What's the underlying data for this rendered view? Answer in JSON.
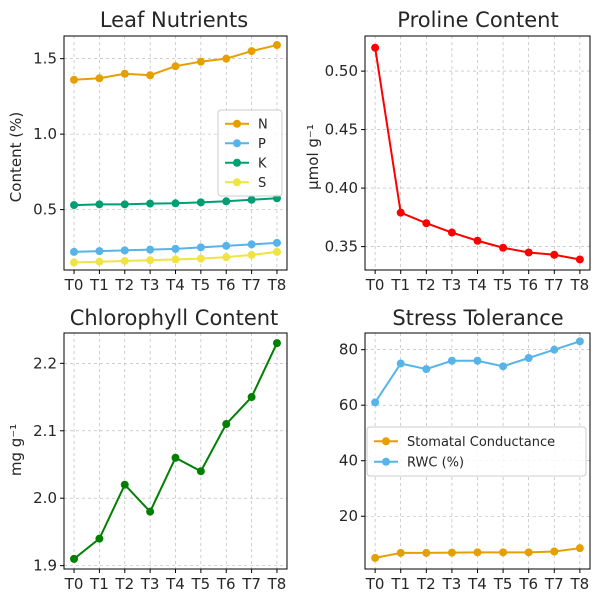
{
  "chart_data": [
    {
      "type": "line",
      "title": "Leaf Nutrients",
      "xlabel": "",
      "ylabel": "Content (%)",
      "categories": [
        "T0",
        "T1",
        "T2",
        "T3",
        "T4",
        "T5",
        "T6",
        "T7",
        "T8"
      ],
      "ylim": [
        0.1,
        1.65
      ],
      "yticks": [
        0.5,
        1.0,
        1.5
      ],
      "ytick_labels": [
        "0.5",
        "1.0",
        "1.5"
      ],
      "grid": true,
      "legend": "center-right",
      "series": [
        {
          "name": "N",
          "color": "#e69f00",
          "values": [
            1.36,
            1.37,
            1.4,
            1.39,
            1.45,
            1.48,
            1.5,
            1.55,
            1.59
          ]
        },
        {
          "name": "P",
          "color": "#56b4e9",
          "values": [
            0.22,
            0.225,
            0.23,
            0.235,
            0.24,
            0.25,
            0.26,
            0.27,
            0.28
          ]
        },
        {
          "name": "K",
          "color": "#009e73",
          "values": [
            0.53,
            0.535,
            0.535,
            0.54,
            0.542,
            0.548,
            0.555,
            0.565,
            0.575
          ]
        },
        {
          "name": "S",
          "color": "#f0e442",
          "values": [
            0.15,
            0.155,
            0.16,
            0.165,
            0.17,
            0.175,
            0.185,
            0.2,
            0.22
          ]
        }
      ]
    },
    {
      "type": "line",
      "title": "Proline Content",
      "xlabel": "",
      "ylabel": "µmol g⁻¹",
      "categories": [
        "T0",
        "T1",
        "T2",
        "T3",
        "T4",
        "T5",
        "T6",
        "T7",
        "T8"
      ],
      "ylim": [
        0.33,
        0.53
      ],
      "yticks": [
        0.35,
        0.4,
        0.45,
        0.5
      ],
      "ytick_labels": [
        "0.35",
        "0.40",
        "0.45",
        "0.50"
      ],
      "grid": true,
      "series": [
        {
          "name": "Proline",
          "color": "#ff0000",
          "values": [
            0.52,
            0.379,
            0.37,
            0.362,
            0.355,
            0.349,
            0.345,
            0.343,
            0.339
          ]
        }
      ]
    },
    {
      "type": "line",
      "title": "Chlorophyll Content",
      "xlabel": "",
      "ylabel": "mg g⁻¹",
      "categories": [
        "T0",
        "T1",
        "T2",
        "T3",
        "T4",
        "T5",
        "T6",
        "T7",
        "T8"
      ],
      "ylim": [
        1.895,
        2.245
      ],
      "yticks": [
        1.9,
        2.0,
        2.1,
        2.2
      ],
      "ytick_labels": [
        "1.9",
        "2.0",
        "2.1",
        "2.2"
      ],
      "grid": true,
      "series": [
        {
          "name": "Chlorophyll",
          "color": "#008000",
          "values": [
            1.91,
            1.94,
            2.02,
            1.98,
            2.06,
            2.04,
            2.11,
            2.15,
            2.23
          ]
        }
      ]
    },
    {
      "type": "line",
      "title": "Stress Tolerance",
      "xlabel": "",
      "ylabel": "",
      "categories": [
        "T0",
        "T1",
        "T2",
        "T3",
        "T4",
        "T5",
        "T6",
        "T7",
        "T8"
      ],
      "ylim": [
        1,
        86
      ],
      "yticks": [
        20,
        40,
        60,
        80
      ],
      "ytick_labels": [
        "20",
        "40",
        "60",
        "80"
      ],
      "grid": true,
      "legend": "center-right",
      "series": [
        {
          "name": "Stomatal Conductance",
          "color": "#e69f00",
          "values": [
            5,
            6.8,
            6.8,
            6.9,
            7,
            7,
            7,
            7.3,
            8.5
          ]
        },
        {
          "name": "RWC (%)",
          "color": "#56b4e9",
          "values": [
            61,
            75,
            73,
            76,
            76,
            74,
            77,
            80,
            83
          ]
        }
      ]
    }
  ]
}
